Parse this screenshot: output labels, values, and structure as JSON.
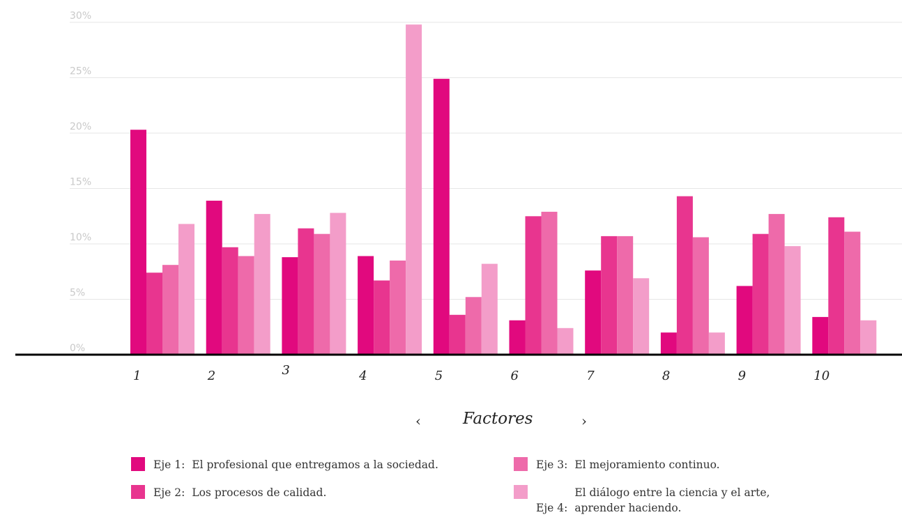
{
  "chart_data": {
    "type": "bar",
    "categories": [
      "1",
      "2",
      "3",
      "4",
      "5",
      "6",
      "7",
      "8",
      "9",
      "10"
    ],
    "series": [
      {
        "name": "Eje 1:",
        "color": "#e1097e",
        "values": [
          20.3,
          13.9,
          8.8,
          8.9,
          24.9,
          3.1,
          7.6,
          2.0,
          6.2,
          3.4
        ]
      },
      {
        "name": "Eje 2:",
        "color": "#e8358f",
        "values": [
          7.4,
          9.7,
          11.4,
          6.7,
          3.6,
          12.5,
          10.7,
          14.3,
          10.9,
          12.4
        ]
      },
      {
        "name": "Eje 3:",
        "color": "#ee6aaa",
        "values": [
          8.1,
          8.9,
          10.9,
          8.5,
          5.2,
          12.9,
          10.7,
          10.6,
          12.7,
          11.1
        ]
      },
      {
        "name": "Eje 4:",
        "color": "#f39dc9",
        "values": [
          11.8,
          12.7,
          12.8,
          29.8,
          8.2,
          2.4,
          6.9,
          2.0,
          9.8,
          3.1
        ]
      }
    ],
    "y_ticks": [
      "0%",
      "5%",
      "10%",
      "15%",
      "20%",
      "25%",
      "30%"
    ],
    "ylim": [
      0,
      30
    ],
    "xlabel": "Factores",
    "ylabel": "",
    "grid": true,
    "legend_position": "bottom"
  },
  "nav": {
    "prev": "‹",
    "next": "›"
  },
  "legend": [
    {
      "series": "Eje 1:",
      "label": "El profesional que entregamos a la sociedad.",
      "color": "#e1097e"
    },
    {
      "series": "Eje 2:",
      "label": "Los procesos de calidad.",
      "color": "#e8358f"
    },
    {
      "series": "Eje 3:",
      "label": "El mejoramiento continuo.",
      "color": "#ee6aaa"
    },
    {
      "series": "Eje 4:",
      "label": "El diálogo entre la ciencia y el arte, aprender haciendo.",
      "color": "#f39dc9"
    }
  ]
}
